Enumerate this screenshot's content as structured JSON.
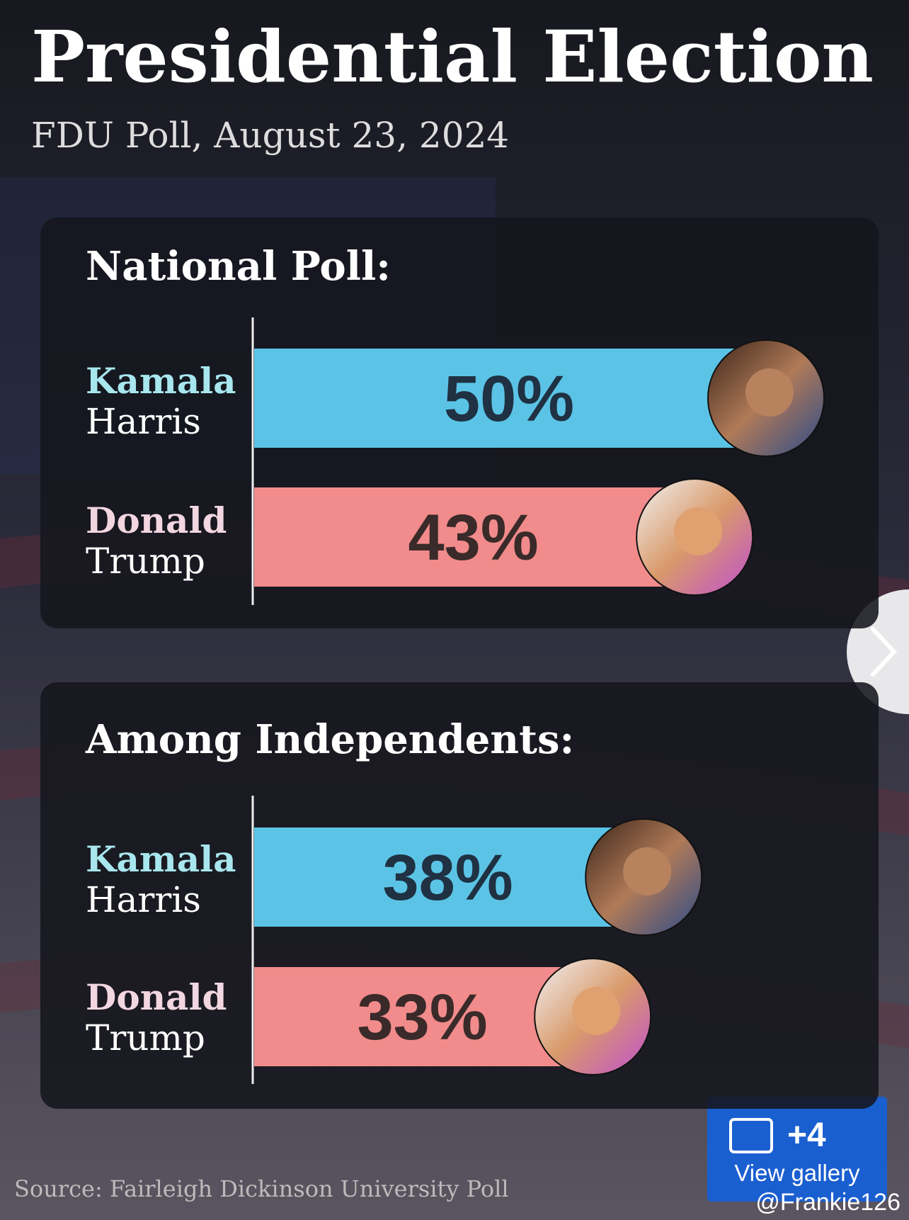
{
  "title": "Presidential Election",
  "subtitle": "FDU Poll, August 23, 2024",
  "source": "Source: Fairleigh Dickinson University Poll",
  "gallery": {
    "count": "+4",
    "label": "View gallery"
  },
  "watermark": "@Frankie126",
  "chart_data": [
    {
      "type": "bar",
      "title": "National Poll:",
      "categories": [
        [
          "Kamala",
          "Harris"
        ],
        [
          "Donald",
          "Trump"
        ]
      ],
      "values": [
        50,
        43
      ],
      "value_labels": [
        "50%",
        "43%"
      ],
      "colors": [
        "#5bc4e6",
        "#f28b8b"
      ]
    },
    {
      "type": "bar",
      "title": "Among Independents:",
      "categories": [
        [
          "Kamala",
          "Harris"
        ],
        [
          "Donald",
          "Trump"
        ]
      ],
      "values": [
        38,
        33
      ],
      "value_labels": [
        "38%",
        "33%"
      ],
      "colors": [
        "#5bc4e6",
        "#f28b8b"
      ]
    }
  ]
}
